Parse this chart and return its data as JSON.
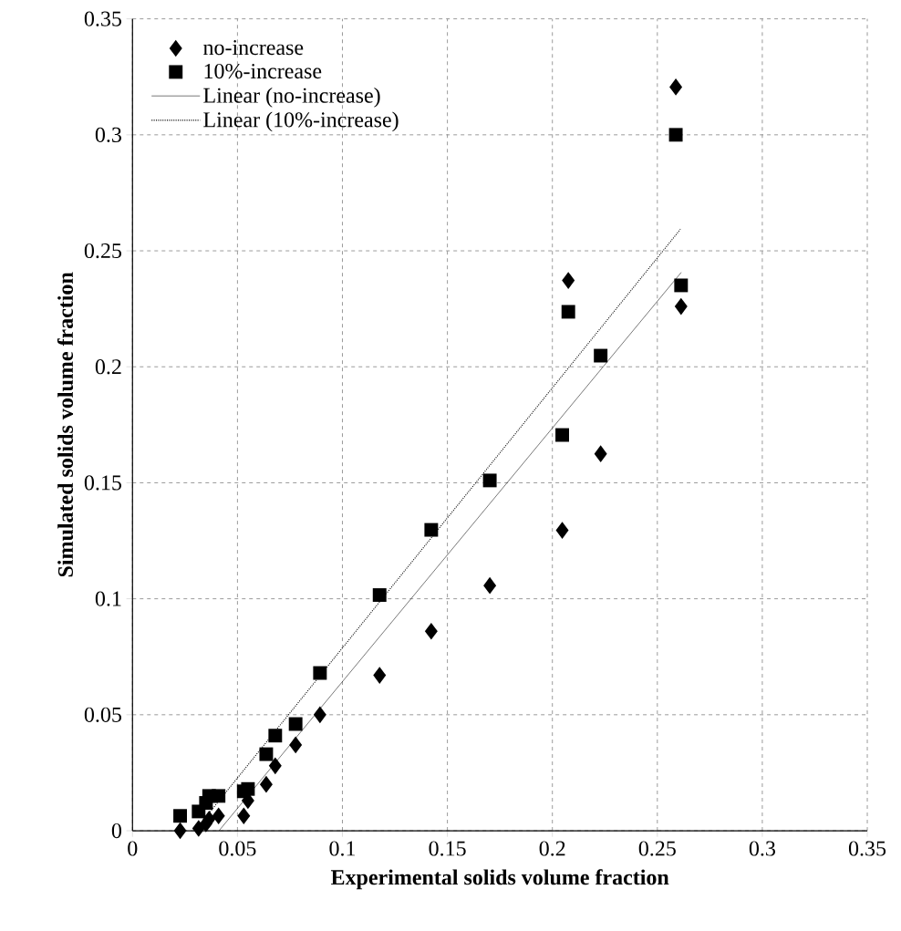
{
  "chart_data": {
    "type": "scatter",
    "xlabel": "Experimental solids volume fraction",
    "ylabel": "Simulated solids volume fraction",
    "xlim": [
      0,
      0.35
    ],
    "ylim": [
      0,
      0.35
    ],
    "xticks": [
      0,
      0.05,
      0.1,
      0.15,
      0.2,
      0.25,
      0.3,
      0.35
    ],
    "yticks": [
      0,
      0.05,
      0.1,
      0.15,
      0.2,
      0.25,
      0.3,
      0.35
    ],
    "grid": true,
    "legend": "top left",
    "series": [
      {
        "name": "no-increase",
        "color": "#000000",
        "marker": "diamond",
        "x": [
          0.0227,
          0.0315,
          0.035,
          0.0365,
          0.041,
          0.053,
          0.055,
          0.0637,
          0.068,
          0.0777,
          0.0893,
          0.1177,
          0.1423,
          0.1702,
          0.2047,
          0.2076,
          0.223,
          0.2588,
          0.2613
        ],
        "values": [
          0.0,
          0.001,
          0.003,
          0.005,
          0.0064,
          0.0064,
          0.013,
          0.02,
          0.028,
          0.037,
          0.05,
          0.067,
          0.086,
          0.1057,
          0.1295,
          0.2372,
          0.1625,
          0.3206,
          0.226
        ]
      },
      {
        "name": "10%-increase",
        "color": "#000000",
        "marker": "square",
        "x": [
          0.0227,
          0.0315,
          0.035,
          0.0365,
          0.041,
          0.053,
          0.055,
          0.0637,
          0.068,
          0.0777,
          0.0893,
          0.1177,
          0.1423,
          0.1702,
          0.2047,
          0.2076,
          0.223,
          0.2588,
          0.2613
        ],
        "values": [
          0.0064,
          0.0083,
          0.012,
          0.015,
          0.015,
          0.017,
          0.018,
          0.033,
          0.041,
          0.046,
          0.068,
          0.1016,
          0.1297,
          0.151,
          0.1706,
          0.2237,
          0.2048,
          0.3,
          0.2351
        ]
      },
      {
        "name": "Linear (no-increase)",
        "type": "line",
        "color": "#000000",
        "marker": "none",
        "line_style": "solid",
        "x": [
          0.0412,
          0.2614
        ],
        "values": [
          0.0,
          0.2407
        ]
      },
      {
        "name": "Linear (10%-increase)",
        "type": "line",
        "color": "#000000",
        "marker": "none",
        "line_style": "dotted",
        "x": [
          0.0297,
          0.261
        ],
        "values": [
          0.0,
          0.2593
        ]
      }
    ]
  }
}
